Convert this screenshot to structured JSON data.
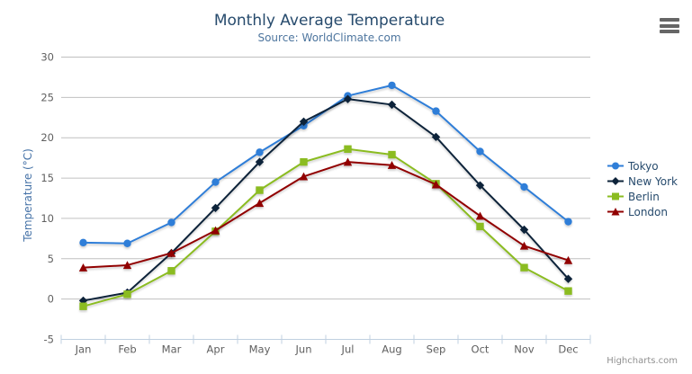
{
  "header": {
    "title": "Monthly Average Temperature",
    "subtitle": "Source: WorldClimate.com"
  },
  "credits": {
    "label": "Highcharts.com"
  },
  "icons": {
    "export_menu_icon": "hamburger (three horizontal bars)"
  },
  "colors": {
    "title": "#274b6d",
    "subtitle": "#4d759e",
    "yaxis_title": "#4572a7",
    "axis_label": "#606060",
    "axis_line": "#c0d0e0",
    "gridline": "#c0c0c0",
    "legend_text": "#274b6d",
    "credits_text": "#909090",
    "export_icon": "#666666"
  },
  "chart_data": {
    "type": "line",
    "title": "Monthly Average Temperature",
    "subtitle": "Source: WorldClimate.com",
    "xlabel": "",
    "ylabel": "Temperature (°C)",
    "categories": [
      "Jan",
      "Feb",
      "Mar",
      "Apr",
      "May",
      "Jun",
      "Jul",
      "Aug",
      "Sep",
      "Oct",
      "Nov",
      "Dec"
    ],
    "ylim": [
      -5,
      30
    ],
    "yticks": [
      -5,
      0,
      5,
      10,
      15,
      20,
      25,
      30
    ],
    "grid": true,
    "legend_position": "right",
    "series": [
      {
        "name": "Tokyo",
        "marker": "circle",
        "color": "#2f7ed8",
        "values": [
          7.0,
          6.9,
          9.5,
          14.5,
          18.2,
          21.5,
          25.2,
          26.5,
          23.3,
          18.3,
          13.9,
          9.6
        ]
      },
      {
        "name": "New York",
        "marker": "diamond",
        "color": "#0d233a",
        "values": [
          -0.2,
          0.8,
          5.7,
          11.3,
          17.0,
          22.0,
          24.8,
          24.1,
          20.1,
          14.1,
          8.6,
          2.5
        ]
      },
      {
        "name": "Berlin",
        "marker": "square",
        "color": "#8bbc21",
        "values": [
          -0.9,
          0.6,
          3.5,
          8.4,
          13.5,
          17.0,
          18.6,
          17.9,
          14.3,
          9.0,
          3.9,
          1.0
        ]
      },
      {
        "name": "London",
        "marker": "triangle",
        "color": "#910000",
        "values": [
          3.9,
          4.2,
          5.7,
          8.5,
          11.9,
          15.2,
          17.0,
          16.6,
          14.2,
          10.3,
          6.6,
          4.8
        ]
      }
    ]
  }
}
